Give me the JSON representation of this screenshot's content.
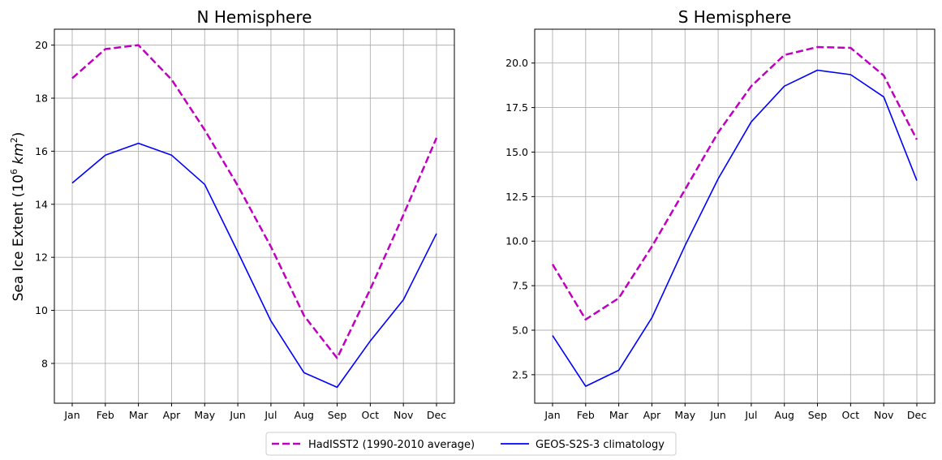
{
  "colors": {
    "hadisst": "#bf00bf",
    "geos": "#0000ff",
    "grid": "#b0b0b0",
    "axes": "#000000"
  },
  "ylabel": {
    "prefix": "Sea Ice Extent (10",
    "exp": "6",
    "km": "km",
    "km_exp": "2",
    "suffix": ")"
  },
  "legend": {
    "location": "bottom-center",
    "items": [
      {
        "label": "HadISST2 (1990-2010 average)",
        "style": "dashed",
        "color": "#bf00bf"
      },
      {
        "label": "GEOS-S2S-3 climatology",
        "style": "solid",
        "color": "#0000ff"
      }
    ]
  },
  "chart_data": [
    {
      "type": "line",
      "title": "N Hemisphere",
      "categories": [
        "Jan",
        "Feb",
        "Mar",
        "Apr",
        "May",
        "Jun",
        "Jul",
        "Aug",
        "Sep",
        "Oct",
        "Nov",
        "Dec"
      ],
      "ylim": [
        6.5,
        20.6
      ],
      "yticks": [
        8,
        10,
        12,
        14,
        16,
        18,
        20
      ],
      "ytick_labels": [
        "8",
        "10",
        "12",
        "14",
        "16",
        "18",
        "20"
      ],
      "grid": true,
      "series": [
        {
          "name": "HadISST2 (1990-2010 average)",
          "style": "dashed",
          "color": "#bf00bf",
          "values": [
            18.75,
            19.85,
            20.0,
            18.7,
            16.8,
            14.7,
            12.4,
            9.8,
            8.2,
            10.8,
            13.6,
            16.5
          ]
        },
        {
          "name": "GEOS-S2S-3 climatology",
          "style": "solid",
          "color": "#0000ff",
          "values": [
            14.8,
            15.85,
            16.3,
            15.85,
            14.75,
            12.2,
            9.6,
            7.65,
            7.1,
            8.85,
            10.4,
            12.9
          ]
        }
      ]
    },
    {
      "type": "line",
      "title": "S Hemisphere",
      "categories": [
        "Jan",
        "Feb",
        "Mar",
        "Apr",
        "May",
        "Jun",
        "Jul",
        "Aug",
        "Sep",
        "Oct",
        "Nov",
        "Dec"
      ],
      "ylim": [
        0.9,
        21.9
      ],
      "yticks": [
        2.5,
        5.0,
        7.5,
        10.0,
        12.5,
        15.0,
        17.5,
        20.0
      ],
      "ytick_labels": [
        "2.5",
        "5.0",
        "7.5",
        "10.0",
        "12.5",
        "15.0",
        "17.5",
        "20.0"
      ],
      "grid": true,
      "series": [
        {
          "name": "HadISST2 (1990-2010 average)",
          "style": "dashed",
          "color": "#bf00bf",
          "values": [
            8.7,
            5.6,
            6.8,
            9.7,
            12.9,
            16.1,
            18.7,
            20.45,
            20.9,
            20.85,
            19.3,
            15.7
          ]
        },
        {
          "name": "GEOS-S2S-3 climatology",
          "style": "solid",
          "color": "#0000ff",
          "values": [
            4.7,
            1.85,
            2.75,
            5.7,
            9.75,
            13.5,
            16.7,
            18.7,
            19.6,
            19.35,
            18.1,
            13.4
          ]
        }
      ]
    }
  ]
}
